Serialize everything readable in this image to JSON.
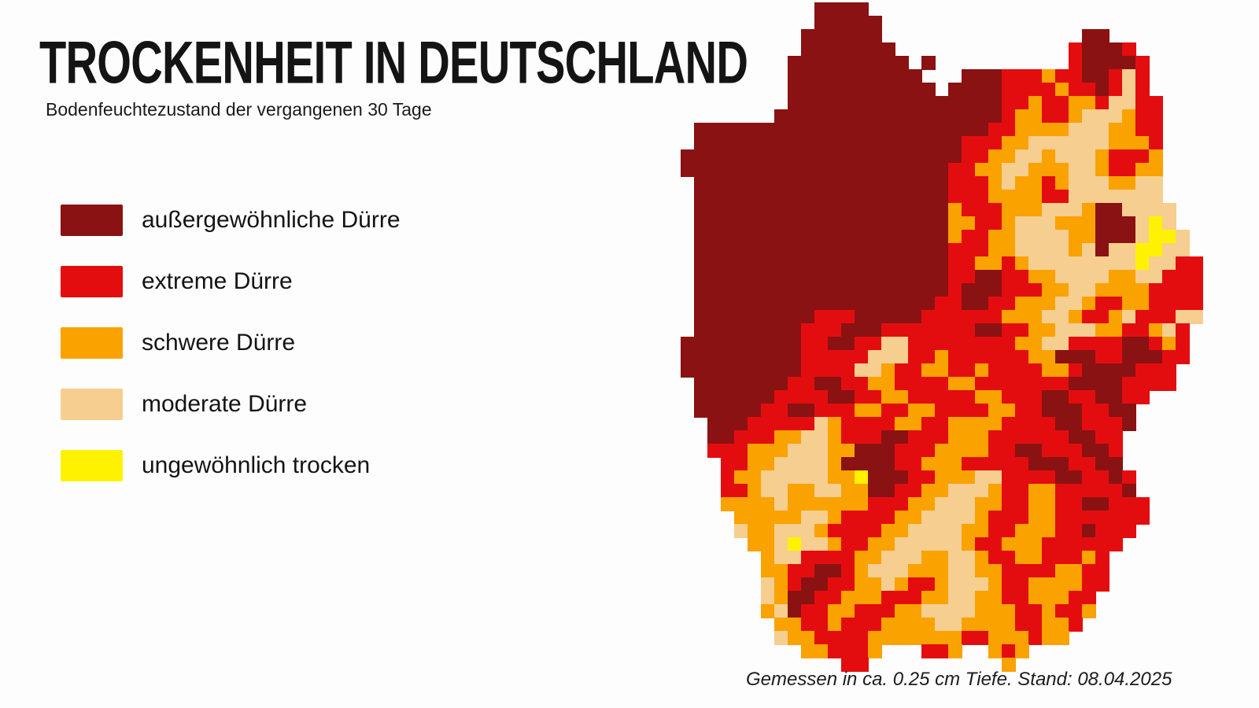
{
  "header": {
    "title": "TROCKENHEIT IN DEUTSCHLAND",
    "subtitle": "Bodenfeuchtezustand der vergangenen 30 Tage"
  },
  "legend": {
    "items": [
      {
        "key": "A",
        "label": "außergewöhnliche Dürre"
      },
      {
        "key": "E",
        "label": "extreme Dürre"
      },
      {
        "key": "S",
        "label": "schwere Dürre"
      },
      {
        "key": "M",
        "label": "moderate Dürre"
      },
      {
        "key": "U",
        "label": "ungewöhnlich trocken"
      }
    ]
  },
  "map": {
    "palette": {
      "A": "#8B1212",
      "E": "#E30D10",
      "S": "#F9A200",
      "M": "#F6CE8F",
      "U": "#FFF200"
    },
    "cell_size": 17,
    "rows": [
      "..........AAAA..........................",
      "..........AAAAA.........................",
      ".........AAAAAA...............AA........",
      ".........AAAAAAA.............EAAAE......",
      "........AAAAAAAAA.A..........EAAAAE.....",
      "........AAAAAAAAAA...AAAEEESEEAAEME.....",
      "........AAAAAAAAAAA.AAAAEEEESEEAEME.....",
      "........AAAAAAAAAAAAAAAAEESEESSEMMEE....",
      ".......AAAAAAAAAAAAAAAAAESSEESMMMSEE....",
      ".AAAAAAAAAAAAAAAAAAAAAAEESSSSMMMSSEE....",
      ".AAAAAAAAAAAAAAAAAAAAEEESSMMMMMMSSSE....",
      "AAAAAAAAAAAAAAAAAAAAAEESSMMSMMMSEEES....",
      "AAAAAAAAAAAAAAAAAAAAEESSMMSSSMMSEESS....",
      ".AAAAAAAAAAAAAAAAAAAEEESMSSESMMMSSMM....",
      ".AAAAAAAAAAAAAAAAAAAEEESSSSEEMMMMMMM....",
      ".AAAAAAAAAAAAAAAAAAASEEESSSMMMSAAMMMM...",
      ".AAAAAAAAAAAAAAAAAAASSEESMMMSSSAAAMUM...",
      ".AAAAAAAAAAAAAAAAAAASEESSMMMMSSAAAMUUM..",
      ".AAAAAAAAAAAAAAAAAAAEEESSMMMMSMAMMUUMM..",
      ".AAAAAAAAAAAAAAAAAAAEESSESMMMMMMMMUMMEE.",
      ".AAAAAAAAAAAAAAAAAAAEEAAEESSMMMMSSMMEEE.",
      ".AAAAAAAAAAAAAAAAAAAEAAAEEESSMMSSSSEEEE.",
      ".AAAAAAAAAAAAAAAAAAEEAAEESSSMMSEESSEEEE.",
      ".AAAAAAAAAEEEAAAAAEEEEEESSSMMSEESMEEEMM.",
      ".AAAAAAAAEEEAAAEEEEEEEAAEESSMMMSSEESME..",
      "AAAAAAAAAEEAAEEMMEEEEEEEESSMMEEEEAAESE..",
      "AAAAAAAAAEEEEEMMMEESEEEEEESSAAAEEAAAEE..",
      "AAAAAAAAAEEEEMMSEESSEESEEEESSEAAAAEEE...",
      ".AAAAAAAEEAAEESSEEEESSEEEEEEEAAAAEEEE...",
      ".AAAAAAEEEEAAEESSEEEEESSEEEAAEEAAEE.....",
      ".AAAAAEEAAEEESSEESSEEEESSEEAAAEEAA......",
      "..AAAEEEEEMSEEEESSEESSSSEEEEAAEEEA......",
      "..AAEEESSMMSEEEAAEEESSSEEEEEEAAEE.......",
      "..EEESSSMMMSSAAAEEESSSSEEAAEEEAAE.......",
      "...EESSMMMMSAAAAEESSSEEEEEAAAEEAA.......",
      "...ESSMMMMMSSUAAAEESSSMMEEEEAAEEAE......",
      "...EESMMSSMMSSAAEESSMMMSEESSEEEEEA......",
      "...SSSSMSSSSSSEEESSMMMSSEESSEEAAEEE.....",
      "....SSSSSMMSEEEESSMMMMSEEESSEEEEEEE.....",
      "....MSSMMMSEEEESSMMMMSSEESSSEEAEEE......",
      ".....SSMUMMSEESSMMMMMSEESSSEEEEEE.......",
      "......SMMEEEESSMMMSSMMSEESSEEESE........",
      "......SSEEAAESMMMSSSMMSSEEEESSEE........",
      "......MSEAAEESSMSEESMMMSEESSSSEE........",
      "......MSAAEESSSEEESSMMSSEESSSEE.........",
      "......SMAEESSEEESSMMMMSSSEESEES.........",
      ".......SSEESEEESSSSMMSSSSEESSE..........",
      ".......MSSEEEESSSSSSSEESSSESS...........",
      ".........SSEEES...EES..SES..............",
      "............EE..........S..............."
    ]
  },
  "footer": {
    "note": "Gemessen in ca. 0.25 cm Tiefe. Stand: 08.04.2025"
  }
}
